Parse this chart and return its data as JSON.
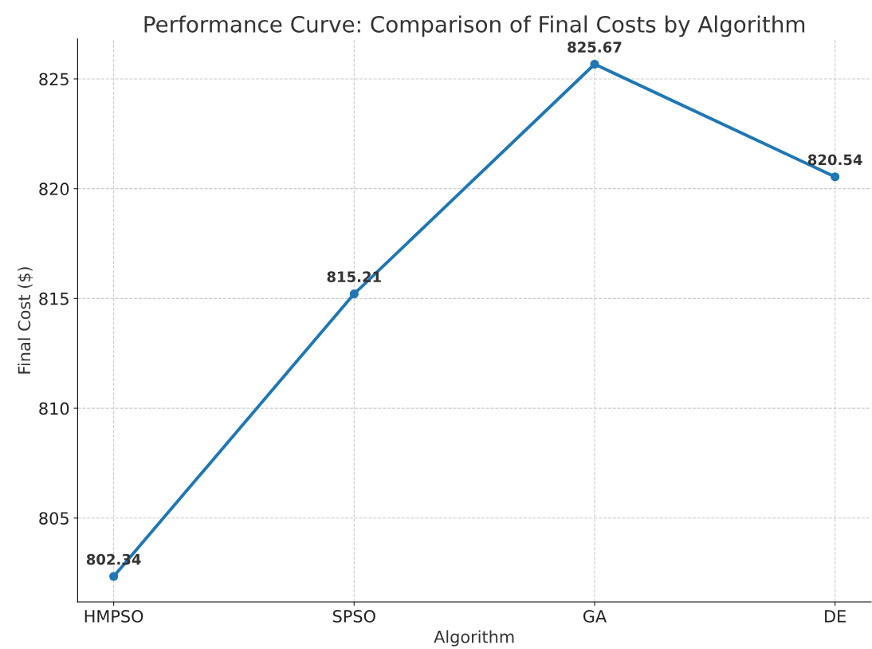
{
  "chart_data": {
    "type": "line",
    "title": "Performance Curve: Comparison of Final Costs by Algorithm",
    "xlabel": "Algorithm",
    "ylabel": "Final Cost ($)",
    "categories": [
      "HMPSO",
      "SPSO",
      "GA",
      "DE"
    ],
    "series": [
      {
        "color": "#1f77b4",
        "values": [
          802.34,
          815.21,
          825.67,
          820.54
        ]
      }
    ],
    "ylim": [
      801.18,
      826.82
    ],
    "yticks": [
      805,
      810,
      815,
      820,
      825
    ],
    "grid": true,
    "marker": "circle",
    "line_style": "solid",
    "data_labels": true
  }
}
